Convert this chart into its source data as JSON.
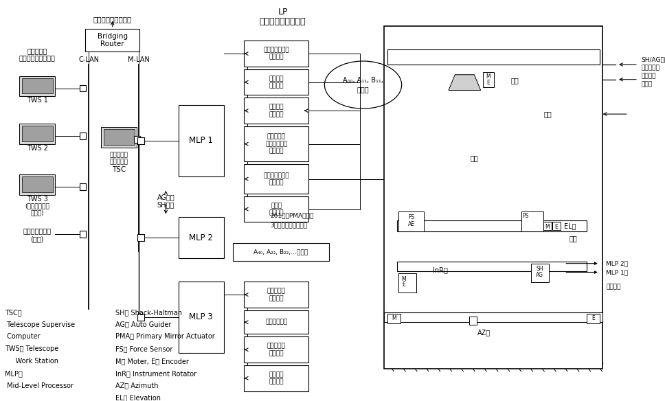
{
  "bg_color": "#f5f5f0",
  "title_top": "LP",
  "title_sub": "ローカルプロセッサ",
  "obs_computer": "観測制御用計算機へ",
  "tws_label1": "望遠鏡制御",
  "tws_label2": "ワークステーション",
  "tsc_label1": "望遠鏡制御",
  "tsc_label2": "統括計算機",
  "tsc_label3": "TSC",
  "clan": "C‐LAN",
  "mlan": "M‐LAN",
  "bridging": "Bridging\nRouter",
  "ag_label": "AGから",
  "sh_label": "SHから",
  "mlp1_text": "MLP 1",
  "mlp2_text": "MLP 2",
  "mlp3_text": "MLP 3",
  "tws_labels": [
    "TWS 1",
    "TWS 2",
    "TWS 3"
  ],
  "tws3_sub": [
    "(データベース",
    "サーバ)"
  ],
  "hoshu": "保守用パソコン",
  "hoshu_sub": "(複数)",
  "ctrl_boxes_mlp1": [
    "シャッタ・風速\n制御装置",
    "振動副鏡\n制御装置",
    "副鏡駆動\n制御装置",
    "視野回転・\n大気分散補正\n制御装置",
    "望遠鏡射台駆動\n制御装置",
    "ドーム\n制御装置"
  ],
  "ctrl_boxes_mlp3": [
    "熱制御機構\n制御装置",
    "気象観測装置",
    "焦点部共通\n制御装置",
    "その他の\n制御装置"
  ],
  "oval_lines": [
    "A₀₀, A₁₁, B₁₁,",
    "の補正"
  ],
  "pma_text": "261台のPMAと接続",
  "fixed_text": "3カ所の固定点と接続",
  "a40_text": "A₄₀, A₂₂, B₂₂,…を補正",
  "fukyo": "副鏡",
  "kyotsu": "鏡筒",
  "shukyo": "主鏡",
  "el_label": "EL軸",
  "az_label": "AZ軸",
  "inr_label": "InR軸",
  "kadai": "架台",
  "mlp2e": "MLP 2へ",
  "mlp1e": "MLP 1へ",
  "kansouchi": "観測装置",
  "sh_ag_1": "SH/AG用の",
  "sh_ag_2": "参照星の光",
  "kansoku_1": "観測する",
  "kansoku_2": "星の光",
  "legend_left": [
    [
      "TSC：",
      false
    ],
    [
      " Telescope Supervise",
      false
    ],
    [
      " Computer",
      false
    ],
    [
      "TWS： Telescope",
      false
    ],
    [
      "     Work Station",
      false
    ],
    [
      "MLP：",
      false
    ],
    [
      " Mid‐Level Processor",
      false
    ]
  ],
  "legend_right": [
    "SH： Shack‐Haltman",
    "AG： Auto Guider",
    "PMA： Primary Mirror Actuator",
    "FS： Force Sensor",
    "M： Moter, E： Encoder",
    "InR： Instrument Rotator",
    "AZ： Azimuth",
    "EL： Elevation"
  ]
}
